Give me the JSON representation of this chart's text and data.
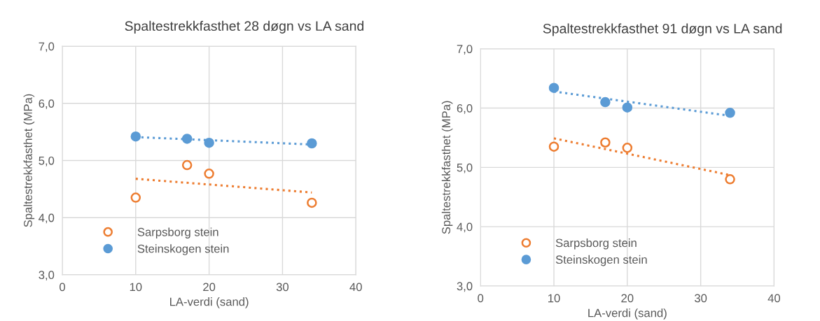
{
  "chart_data": [
    {
      "type": "scatter",
      "title": "Spaltestrekkfasthet 28 døgn vs LA sand",
      "xlabel": "LA-verdi (sand)",
      "ylabel": "Spaltestrekkfasthet (MPa)",
      "xlim": [
        0,
        40
      ],
      "xticks": [
        0,
        10,
        20,
        30,
        40
      ],
      "ylim": [
        3,
        7
      ],
      "yticks": [
        {
          "value": 3,
          "label": "3,0"
        },
        {
          "value": 4,
          "label": "4,0"
        },
        {
          "value": 5,
          "label": "5,0"
        },
        {
          "value": 6,
          "label": "6,0"
        },
        {
          "value": 7,
          "label": "7,0"
        }
      ],
      "grid": true,
      "legend": "bottom left",
      "marker": "circle",
      "series": [
        {
          "name": "Sarpsborg stein",
          "color": "#ed7d31",
          "x": [
            10,
            17,
            20,
            34
          ],
          "values": [
            4.35,
            4.92,
            4.77,
            4.26
          ]
        },
        {
          "name": "Steinskogen stein",
          "color": "#5b9bd5",
          "x": [
            10,
            17,
            20,
            34
          ],
          "values": [
            5.42,
            5.38,
            5.31,
            5.3
          ]
        },
        {
          "type": "line",
          "color": "#ed7d31",
          "line_style": "dotted",
          "marker": "none",
          "x": [
            10,
            34
          ],
          "values": [
            4.68,
            4.44
          ]
        },
        {
          "type": "line",
          "color": "#5b9bd5",
          "line_style": "dotted",
          "marker": "none",
          "x": [
            10,
            34
          ],
          "values": [
            5.41,
            5.28
          ]
        }
      ]
    },
    {
      "type": "scatter",
      "title": "Spaltestrekkfasthet 91 døgn vs LA sand",
      "xlabel": "LA-verdi (sand)",
      "ylabel": "Spaltestrekkfasthet (MPa)",
      "xlim": [
        0,
        40
      ],
      "xticks": [
        0,
        10,
        20,
        30,
        40
      ],
      "ylim": [
        3,
        7
      ],
      "yticks": [
        {
          "value": 3,
          "label": "3,0"
        },
        {
          "value": 4,
          "label": "4,0"
        },
        {
          "value": 5,
          "label": "5,0"
        },
        {
          "value": 6,
          "label": "6,0"
        },
        {
          "value": 7,
          "label": "7,0"
        }
      ],
      "grid": true,
      "legend": "bottom left",
      "marker": "circle",
      "series": [
        {
          "name": "Sarpsborg stein",
          "color": "#ed7d31",
          "x": [
            10,
            17,
            20,
            34
          ],
          "values": [
            5.35,
            5.42,
            5.33,
            4.8
          ]
        },
        {
          "name": "Steinskogen stein",
          "color": "#5b9bd5",
          "x": [
            10,
            17,
            20,
            34
          ],
          "values": [
            6.34,
            6.1,
            6.01,
            5.92
          ]
        },
        {
          "type": "line",
          "color": "#ed7d31",
          "line_style": "dotted",
          "marker": "none",
          "x": [
            10,
            34
          ],
          "values": [
            5.49,
            4.87
          ]
        },
        {
          "type": "line",
          "color": "#5b9bd5",
          "line_style": "dotted",
          "marker": "none",
          "x": [
            10,
            34
          ],
          "values": [
            6.28,
            5.87
          ]
        }
      ]
    }
  ]
}
